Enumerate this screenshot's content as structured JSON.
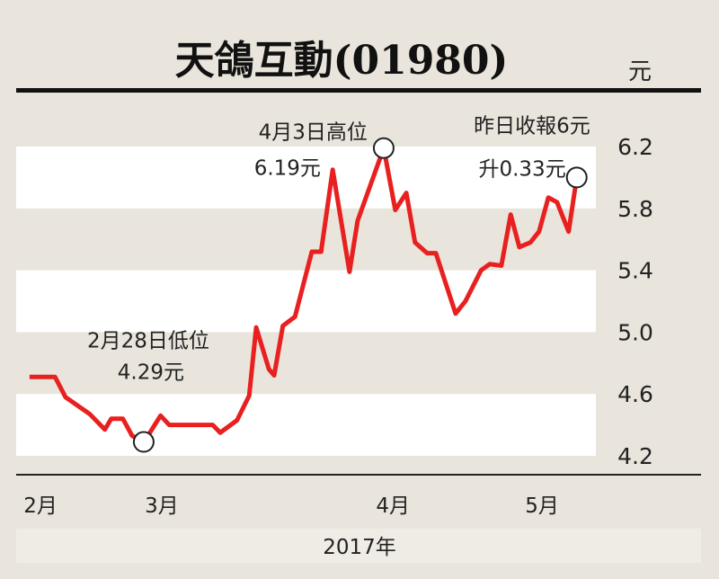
{
  "chart_data": {
    "type": "line",
    "title": "天鴿互動(01980)",
    "ylabel": "元",
    "xlabel": "2017年",
    "ylim": [
      4.2,
      6.2
    ],
    "xlim": [
      0,
      100
    ],
    "yticks": [
      6.2,
      5.8,
      5.4,
      5.0,
      4.6,
      4.2
    ],
    "ytick_labels": [
      "6.2",
      "5.8",
      "5.4",
      "5.0",
      "4.6",
      "4.2"
    ],
    "xticks": [
      {
        "label": "2月",
        "x": 4.2
      },
      {
        "label": "3月",
        "x": 25.1
      },
      {
        "label": "4月",
        "x": 65.0
      },
      {
        "label": "5月",
        "x": 90.7
      }
    ],
    "line_color": "#e8201f",
    "series": [
      {
        "name": "天鴿互動",
        "x": [
          2.3,
          6.7,
          8.5,
          12.7,
          15.3,
          16.4,
          18.4,
          20.0,
          22.0,
          22.9,
          24.9,
          26.4,
          33.9,
          35.2,
          38.1,
          40.2,
          41.4,
          43.6,
          44.5,
          46.0,
          48.1,
          51.0,
          52.6,
          54.6,
          57.5,
          58.9,
          63.4,
          65.4,
          67.3,
          68.8,
          70.9,
          72.4,
          75.8,
          77.5,
          80.2,
          81.7,
          83.7,
          85.3,
          86.8,
          88.7,
          90.2,
          91.8,
          93.3,
          95.3,
          96.7
        ],
        "y": [
          4.71,
          4.71,
          4.58,
          4.47,
          4.37,
          4.44,
          4.44,
          4.33,
          4.29,
          4.34,
          4.46,
          4.4,
          4.4,
          4.35,
          4.43,
          4.59,
          5.03,
          4.76,
          4.72,
          5.04,
          5.1,
          5.52,
          5.52,
          6.05,
          5.39,
          5.72,
          6.19,
          5.79,
          5.9,
          5.58,
          5.51,
          5.51,
          5.12,
          5.2,
          5.4,
          5.44,
          5.43,
          5.76,
          5.55,
          5.58,
          5.65,
          5.87,
          5.84,
          5.65,
          6.0
        ]
      }
    ],
    "markers": [
      {
        "x": 22.0,
        "y": 4.29,
        "label_line1": "2月28日低位",
        "label_line2": "4.29元"
      },
      {
        "x": 63.4,
        "y": 6.19,
        "label_line1": "4月3日高位",
        "label_line2": "6.19元"
      },
      {
        "x": 96.7,
        "y": 6.0,
        "label_line1": "昨日收報6元",
        "label_line2": "升0.33元"
      }
    ],
    "grid": "alternating horizontal bands"
  }
}
